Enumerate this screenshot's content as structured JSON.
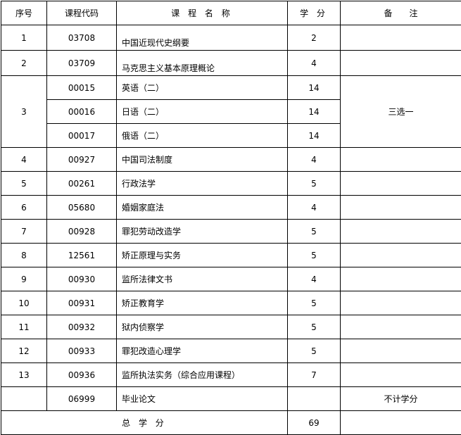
{
  "header": {
    "seq": "序号",
    "code": "课程代码",
    "name": "课 程 名 称",
    "credit": "学 分",
    "remark": "备　　注"
  },
  "rows": [
    {
      "seq": "1",
      "code": "03708",
      "name": "中国近现代史纲要",
      "credit": "2",
      "remark": ""
    },
    {
      "seq": "2",
      "code": "03709",
      "name": "马克思主义基本原理概论",
      "credit": "4",
      "remark": ""
    },
    {
      "seq": "3",
      "code": "00015",
      "name": "英语（二）",
      "credit": "14",
      "remark": "三选一"
    },
    {
      "seq": "",
      "code": "00016",
      "name": "日语（二）",
      "credit": "14",
      "remark": ""
    },
    {
      "seq": "",
      "code": "00017",
      "name": "俄语（二）",
      "credit": "14",
      "remark": ""
    },
    {
      "seq": "4",
      "code": "00927",
      "name": "中国司法制度",
      "credit": "4",
      "remark": ""
    },
    {
      "seq": "5",
      "code": "00261",
      "name": "行政法学",
      "credit": "5",
      "remark": ""
    },
    {
      "seq": "6",
      "code": "05680",
      "name": "婚姻家庭法",
      "credit": "4",
      "remark": ""
    },
    {
      "seq": "7",
      "code": "00928",
      "name": "罪犯劳动改造学",
      "credit": "5",
      "remark": ""
    },
    {
      "seq": "8",
      "code": "12561",
      "name": "矫正原理与实务",
      "credit": "5",
      "remark": ""
    },
    {
      "seq": "9",
      "code": "00930",
      "name": "监所法律文书",
      "credit": "4",
      "remark": ""
    },
    {
      "seq": "10",
      "code": "00931",
      "name": "矫正教育学",
      "credit": "5",
      "remark": ""
    },
    {
      "seq": "11",
      "code": "00932",
      "name": "狱内侦察学",
      "credit": "5",
      "remark": ""
    },
    {
      "seq": "12",
      "code": "00933",
      "name": "罪犯改造心理学",
      "credit": "5",
      "remark": ""
    },
    {
      "seq": "13",
      "code": "00936",
      "name": "监所执法实务（综合应用课程）",
      "credit": "7",
      "remark": ""
    },
    {
      "seq": "",
      "code": "06999",
      "name": "毕业论文",
      "credit": "",
      "remark": "不计学分"
    }
  ],
  "total": {
    "label": "总 学 分",
    "credit": "69"
  }
}
